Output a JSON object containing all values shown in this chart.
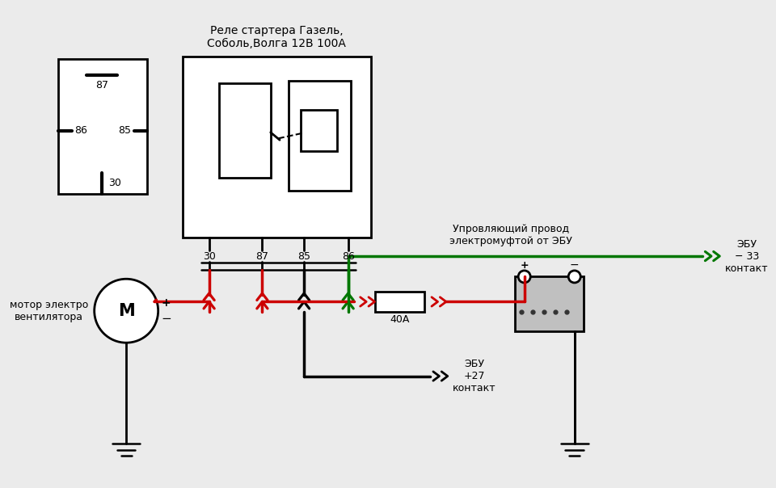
{
  "bg_color": "#ebebeb",
  "black": "#000000",
  "red": "#cc0000",
  "green": "#007700",
  "title_relay": "Реле стартера Газель,\nСоболь,Волга 12В 100А",
  "motor_label": "мотор электро\nвентилятора",
  "fuse_label": "40А",
  "ebu_27_label": "ЭБУ\n+27\nконтакт",
  "ebu_33_label": "ЭБУ\n− 33\nконтакт",
  "control_label": "Упровляющий провод\nэлектромуфтой от ЭБУ"
}
